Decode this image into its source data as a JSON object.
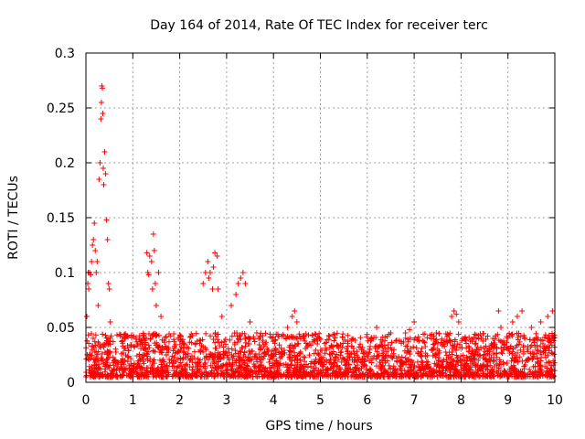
{
  "chart_data": {
    "type": "scatter",
    "title": "Day 164 of 2014, Rate Of TEC Index for receiver terc",
    "xlabel": "GPS time / hours",
    "ylabel": "ROTI / TECUs",
    "xlim": [
      0,
      10
    ],
    "ylim": [
      0,
      0.3
    ],
    "xticks": [
      0,
      1,
      2,
      3,
      4,
      5,
      6,
      7,
      8,
      9,
      10
    ],
    "yticks": [
      0,
      0.05,
      0.1,
      0.15,
      0.2,
      0.25,
      0.3
    ],
    "xtick_labels": [
      "0",
      "1",
      "2",
      "3",
      "4",
      "5",
      "6",
      "7",
      "8",
      "9",
      "10"
    ],
    "ytick_labels": [
      "0",
      "0.05",
      "0.1",
      "0.15",
      "0.2",
      "0.25",
      "0.3"
    ],
    "grid": true,
    "marker": "+",
    "color": "#ff0000",
    "series": [
      {
        "name": "ROTI",
        "points": [
          [
            0.02,
            0.06
          ],
          [
            0.04,
            0.09
          ],
          [
            0.05,
            0.1
          ],
          [
            0.06,
            0.085
          ],
          [
            0.08,
            0.1
          ],
          [
            0.1,
            0.098
          ],
          [
            0.12,
            0.11
          ],
          [
            0.14,
            0.125
          ],
          [
            0.16,
            0.13
          ],
          [
            0.18,
            0.145
          ],
          [
            0.2,
            0.12
          ],
          [
            0.22,
            0.1
          ],
          [
            0.24,
            0.11
          ],
          [
            0.26,
            0.07
          ],
          [
            0.28,
            0.185
          ],
          [
            0.3,
            0.2
          ],
          [
            0.32,
            0.24
          ],
          [
            0.33,
            0.255
          ],
          [
            0.34,
            0.27
          ],
          [
            0.35,
            0.268
          ],
          [
            0.36,
            0.245
          ],
          [
            0.37,
            0.195
          ],
          [
            0.38,
            0.18
          ],
          [
            0.4,
            0.21
          ],
          [
            0.42,
            0.19
          ],
          [
            0.44,
            0.148
          ],
          [
            0.46,
            0.13
          ],
          [
            0.48,
            0.09
          ],
          [
            0.5,
            0.085
          ],
          [
            0.52,
            0.055
          ],
          [
            1.3,
            0.118
          ],
          [
            1.32,
            0.1
          ],
          [
            1.34,
            0.098
          ],
          [
            1.36,
            0.115
          ],
          [
            1.4,
            0.11
          ],
          [
            1.42,
            0.085
          ],
          [
            1.44,
            0.135
          ],
          [
            1.46,
            0.12
          ],
          [
            1.48,
            0.09
          ],
          [
            1.5,
            0.07
          ],
          [
            1.55,
            0.1
          ],
          [
            1.6,
            0.06
          ],
          [
            2.5,
            0.09
          ],
          [
            2.55,
            0.1
          ],
          [
            2.6,
            0.11
          ],
          [
            2.62,
            0.095
          ],
          [
            2.65,
            0.1
          ],
          [
            2.7,
            0.085
          ],
          [
            2.72,
            0.105
          ],
          [
            2.75,
            0.118
          ],
          [
            2.8,
            0.115
          ],
          [
            2.82,
            0.085
          ],
          [
            2.9,
            0.06
          ],
          [
            3.1,
            0.07
          ],
          [
            3.2,
            0.08
          ],
          [
            3.25,
            0.09
          ],
          [
            3.3,
            0.095
          ],
          [
            3.35,
            0.1
          ],
          [
            3.4,
            0.09
          ],
          [
            3.5,
            0.055
          ],
          [
            4.3,
            0.05
          ],
          [
            4.4,
            0.06
          ],
          [
            4.45,
            0.065
          ],
          [
            4.5,
            0.055
          ],
          [
            6.2,
            0.05
          ],
          [
            6.5,
            0.045
          ],
          [
            6.9,
            0.048
          ],
          [
            7.0,
            0.055
          ],
          [
            7.8,
            0.06
          ],
          [
            7.85,
            0.065
          ],
          [
            7.9,
            0.062
          ],
          [
            7.95,
            0.055
          ],
          [
            8.8,
            0.065
          ],
          [
            8.85,
            0.05
          ],
          [
            9.1,
            0.055
          ],
          [
            9.2,
            0.06
          ],
          [
            9.3,
            0.065
          ],
          [
            9.5,
            0.05
          ],
          [
            9.7,
            0.055
          ],
          [
            9.85,
            0.06
          ],
          [
            9.95,
            0.065
          ]
        ]
      }
    ],
    "noise": {
      "description": "dense baseline band across full time range",
      "x_range": [
        0,
        10
      ],
      "y_min": 0.005,
      "y_max": 0.045,
      "density_per_hour": 260
    }
  }
}
